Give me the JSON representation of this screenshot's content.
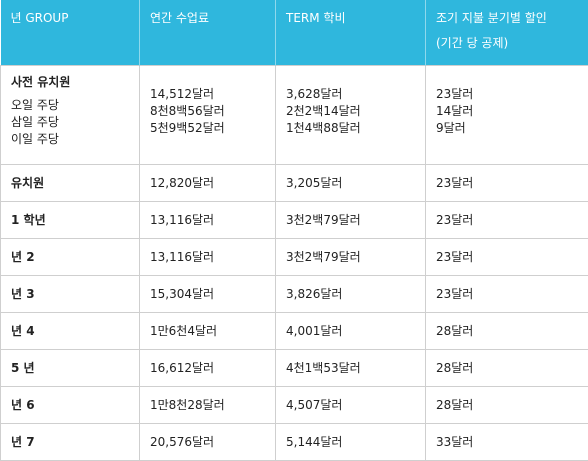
{
  "table": {
    "headers": {
      "grade": "년 GROUP",
      "annual": "연간 수업료",
      "term": "TERM 학비",
      "discount": "조기 지불 분기별 할인",
      "discount_sub": "(기간 당 공제)"
    },
    "preschool": {
      "name": "사전 유치원",
      "options": [
        "오일 주당",
        "삼일 주당",
        "이일 주당"
      ],
      "annual": [
        "14,512달러",
        "8천8백56달러",
        "5천9백52달러"
      ],
      "term": [
        "3,628달러",
        "2천2백14달러",
        "1천4백88달러"
      ],
      "discount": [
        "23달러",
        "14달러",
        "9달러"
      ]
    },
    "rows": [
      {
        "grade": "유치원",
        "annual": "12,820달러",
        "term": "3,205달러",
        "discount": "23달러"
      },
      {
        "grade": "1 학년",
        "annual": "13,116달러",
        "term": "3천2백79달러",
        "discount": "23달러"
      },
      {
        "grade": "년 2",
        "annual": "13,116달러",
        "term": "3천2백79달러",
        "discount": "23달러"
      },
      {
        "grade": "년 3",
        "annual": "15,304달러",
        "term": "3,826달러",
        "discount": "23달러"
      },
      {
        "grade": "년 4",
        "annual": "1만6천4달러",
        "term": "4,001달러",
        "discount": "28달러"
      },
      {
        "grade": "5 년",
        "annual": "16,612달러",
        "term": "4천1백53달러",
        "discount": "28달러"
      },
      {
        "grade": "년 6",
        "annual": "1만8천28달러",
        "term": "4,507달러",
        "discount": "28달러"
      },
      {
        "grade": "년 7",
        "annual": "20,576달러",
        "term": "5,144달러",
        "discount": "33달러"
      }
    ]
  }
}
